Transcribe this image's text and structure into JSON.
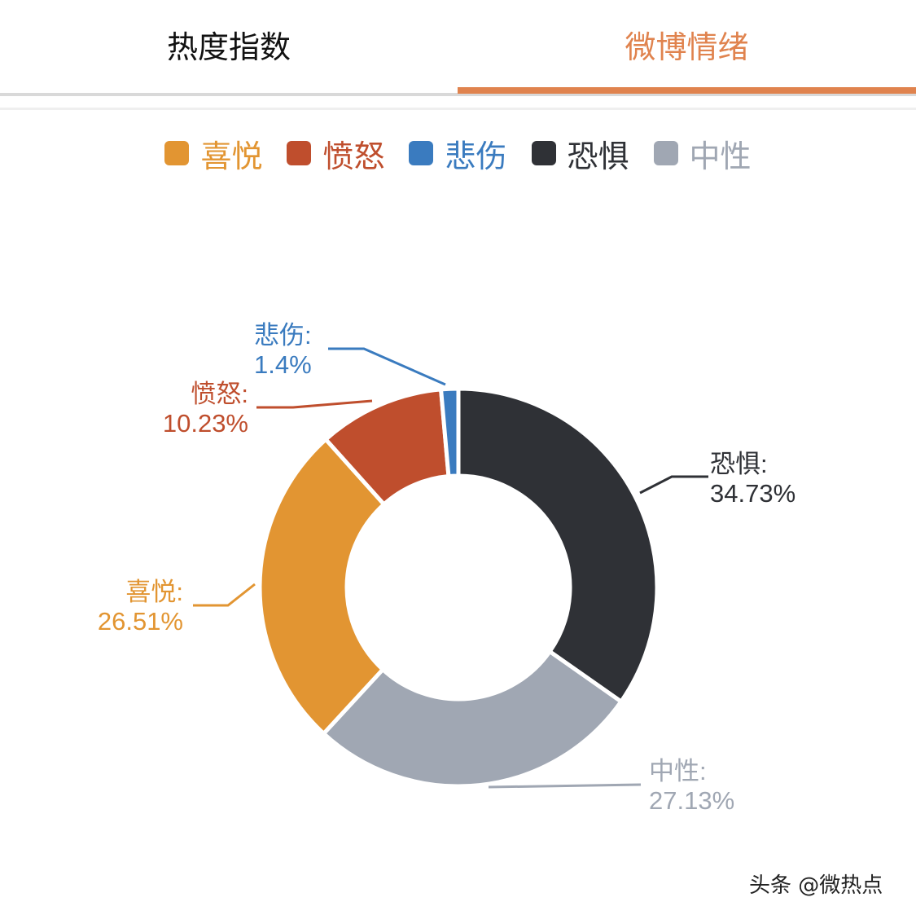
{
  "tabs": [
    {
      "label": "热度指数",
      "active": false
    },
    {
      "label": "微博情绪",
      "active": true
    }
  ],
  "colors": {
    "accent": "#e0834e",
    "tab_inactive_text": "#111111"
  },
  "legend": [
    {
      "label": "喜悦",
      "color": "#e29532"
    },
    {
      "label": "愤怒",
      "color": "#bf4e2d"
    },
    {
      "label": "悲伤",
      "color": "#3a7bbf"
    },
    {
      "label": "恐惧",
      "color": "#2f3136"
    },
    {
      "label": "中性",
      "color": "#a0a7b3"
    }
  ],
  "labels": {
    "fear": {
      "name": "恐惧:",
      "value": "34.73%"
    },
    "neutral": {
      "name": "中性:",
      "value": "27.13%"
    },
    "joy": {
      "name": "喜悦:",
      "value": "26.51%"
    },
    "anger": {
      "name": "愤怒:",
      "value": "10.23%"
    },
    "sadness": {
      "name": "悲伤:",
      "value": "1.4%"
    }
  },
  "watermark": "头条 @微热点",
  "chart_data": {
    "type": "pie",
    "subtype": "donut",
    "title": "微博情绪",
    "categories": [
      "恐惧",
      "中性",
      "喜悦",
      "愤怒",
      "悲伤"
    ],
    "values": [
      34.73,
      27.13,
      26.51,
      10.23,
      1.4
    ],
    "unit": "%",
    "colors": [
      "#2f3136",
      "#a0a7b3",
      "#e29532",
      "#bf4e2d",
      "#3a7bbf"
    ],
    "legend": [
      "喜悦",
      "愤怒",
      "悲伤",
      "恐惧",
      "中性"
    ],
    "legend_position": "top",
    "start_angle": "12 o'clock, clockwise",
    "center": [
      563,
      721
    ],
    "outer_radius": 244,
    "inner_radius": 137
  }
}
